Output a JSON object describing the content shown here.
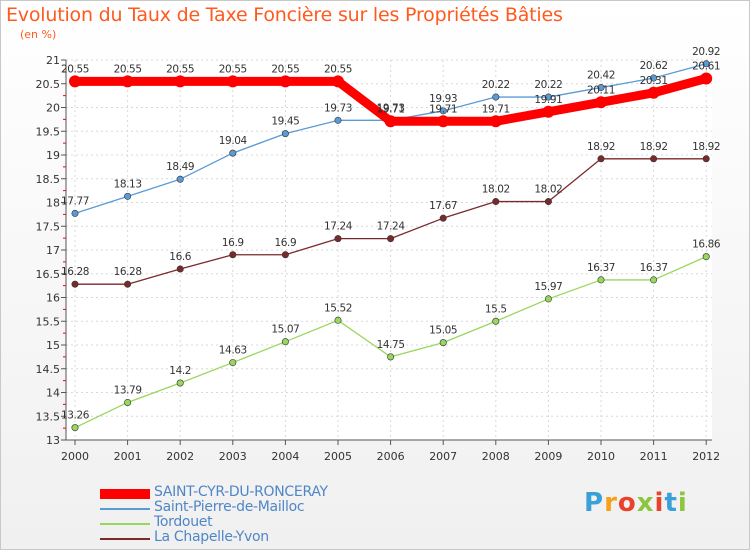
{
  "title": "Evolution du Taux de Taxe Foncière sur les Propriétés Bâties",
  "unit_label": "(en %)",
  "logo": {
    "text": "Proxiti",
    "letter_colors": [
      "#3aa0d8",
      "#f7a11a",
      "#e8412c",
      "#8cc63f",
      "#e8412c",
      "#3aa0d8",
      "#8cc63f"
    ]
  },
  "chart_data": {
    "type": "line",
    "x": [
      "2000",
      "2001",
      "2002",
      "2003",
      "2004",
      "2005",
      "2006",
      "2007",
      "2008",
      "2009",
      "2010",
      "2011",
      "2012"
    ],
    "ylim": [
      13,
      21
    ],
    "yticks": [
      "13",
      "13.5",
      "14",
      "14.5",
      "15",
      "15.5",
      "16",
      "16.5",
      "17",
      "17.5",
      "18",
      "18.5",
      "19",
      "19.5",
      "20",
      "20.5",
      "21"
    ],
    "grid": true,
    "legend_position": "bottom-left",
    "series": [
      {
        "name": "SAINT-CYR-DU-RONCERAY",
        "color": "#ff0000",
        "values": [
          20.55,
          20.55,
          20.55,
          20.55,
          20.55,
          20.55,
          19.71,
          19.71,
          19.71,
          19.91,
          20.11,
          20.31,
          20.61
        ],
        "labels": [
          "20.55",
          "20.55",
          "20.55",
          "20.55",
          "20.55",
          "20.55",
          "19.71",
          "19.71",
          "19.71",
          "19.91",
          "20.11",
          "20.31",
          "20.61"
        ]
      },
      {
        "name": "Saint-Pierre-de-Mailloc",
        "color": "#5b9bd5",
        "values": [
          17.77,
          18.13,
          18.49,
          19.04,
          19.45,
          19.73,
          19.73,
          19.93,
          20.22,
          20.22,
          20.42,
          20.62,
          20.92
        ],
        "labels": [
          "17.77",
          "18.13",
          "18.49",
          "19.04",
          "19.45",
          "19.73",
          "19.73",
          "19.93",
          "20.22",
          "20.22",
          "20.42",
          "20.62",
          "20.92"
        ]
      },
      {
        "name": "Tordouet",
        "color": "#99d65e",
        "values": [
          13.26,
          13.79,
          14.2,
          14.63,
          15.07,
          15.52,
          14.75,
          15.05,
          15.5,
          15.97,
          16.37,
          16.37,
          16.86
        ],
        "labels": [
          "13.26",
          "13.79",
          "14.2",
          "14.63",
          "15.07",
          "15.52",
          "14.75",
          "15.05",
          "15.5",
          "15.97",
          "16.37",
          "16.37",
          "16.86"
        ]
      },
      {
        "name": "La Chapelle-Yvon",
        "color": "#7a2a2a",
        "values": [
          16.28,
          16.28,
          16.6,
          16.9,
          16.9,
          17.24,
          17.24,
          17.67,
          18.02,
          18.02,
          18.92,
          18.92,
          18.92
        ],
        "labels": [
          "16.28",
          "16.28",
          "16.6",
          "16.9",
          "16.9",
          "17.24",
          "17.24",
          "17.67",
          "18.02",
          "18.02",
          "18.92",
          "18.92",
          "18.92"
        ]
      }
    ]
  }
}
